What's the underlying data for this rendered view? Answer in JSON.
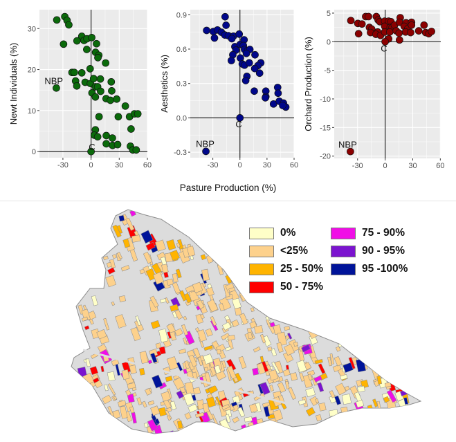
{
  "chart_data": [
    {
      "type": "scatter",
      "xlabel": "Pasture Production (%)",
      "ylabel": "Newt Individuals (%)",
      "xlim": [
        -55,
        60
      ],
      "ylim": [
        -1.5,
        34.6
      ],
      "xticks": [
        -30,
        0,
        30,
        60
      ],
      "yticks": [
        0,
        10,
        20,
        30
      ],
      "ytick_labels": [
        "0",
        "10",
        "20",
        "30"
      ],
      "color": "#0b6a0b",
      "grid": true,
      "points": [
        [
          -36.5,
          32.1
        ],
        [
          -28,
          32.9
        ],
        [
          -25.6,
          32.0
        ],
        [
          -23.7,
          30.9
        ],
        [
          -29.3,
          26.2
        ],
        [
          -9.9,
          28.1
        ],
        [
          -7.5,
          27.1
        ],
        [
          -4.4,
          27.5
        ],
        [
          -15,
          27.0
        ],
        [
          0.7,
          27.8
        ],
        [
          -4.6,
          24.9
        ],
        [
          5.8,
          26.3
        ],
        [
          4.8,
          24.2
        ],
        [
          8.2,
          23.5
        ],
        [
          7.3,
          22.9
        ],
        [
          15.5,
          21.6
        ],
        [
          -1,
          20.2
        ],
        [
          -20.3,
          19.3
        ],
        [
          -17.9,
          19.3
        ],
        [
          -9.9,
          19.2
        ],
        [
          -16.5,
          17.2
        ],
        [
          -15.2,
          16.0
        ],
        [
          -6.3,
          16.9
        ],
        [
          -0.7,
          16.6
        ],
        [
          2.7,
          17.8
        ],
        [
          9.9,
          17.7
        ],
        [
          4.6,
          15.8
        ],
        [
          7.0,
          15.8
        ],
        [
          10.2,
          14.7
        ],
        [
          1,
          14.3
        ],
        [
          4.6,
          13.3
        ],
        [
          21.5,
          17.0
        ],
        [
          22,
          14.8
        ],
        [
          16,
          12.9
        ],
        [
          20.6,
          12.5
        ],
        [
          27.3,
          12.8
        ],
        [
          36.5,
          11.1
        ],
        [
          8.5,
          8.5
        ],
        [
          29,
          8.5
        ],
        [
          41,
          8.5
        ],
        [
          46.2,
          9.2
        ],
        [
          49.8,
          9.2
        ],
        [
          42.6,
          5.5
        ],
        [
          4.6,
          5.3
        ],
        [
          3.4,
          4.0
        ],
        [
          7,
          3.6
        ],
        [
          16.2,
          3.9
        ],
        [
          22.7,
          3.3
        ],
        [
          16.2,
          1.9
        ],
        [
          22.9,
          1.5
        ],
        [
          28.3,
          1.7
        ],
        [
          41.9,
          1.3
        ],
        [
          44.5,
          0.4
        ],
        [
          48.1,
          0.4
        ],
        [
          -37,
          15.5
        ],
        [
          0,
          0
        ]
      ],
      "annotations": [
        {
          "text": "NBP",
          "x": -39.7,
          "y": 17.2
        },
        {
          "text": "C",
          "x": 1,
          "y": 1.1
        }
      ]
    },
    {
      "type": "scatter",
      "xlabel": "Pasture Production (%)",
      "ylabel": "Aesthetics (%)",
      "xlim": [
        -55,
        60
      ],
      "ylim": [
        -0.348,
        0.944
      ],
      "xticks": [
        -30,
        0,
        30,
        60
      ],
      "yticks": [
        -0.3,
        0,
        0.3,
        0.6,
        0.9
      ],
      "ytick_labels": [
        "-0.3",
        "0.0",
        "0.3",
        "0.6",
        "0.9"
      ],
      "color": "#00078a",
      "grid": true,
      "points": [
        [
          -36.9,
          0.763
        ],
        [
          -29.5,
          0.753
        ],
        [
          -28.2,
          0.697
        ],
        [
          -24.9,
          0.767
        ],
        [
          -20.5,
          0.747
        ],
        [
          -16.4,
          0.882
        ],
        [
          -15.4,
          0.808
        ],
        [
          -16.7,
          0.723
        ],
        [
          -12.8,
          0.717
        ],
        [
          -7.2,
          0.713
        ],
        [
          -9,
          0.691
        ],
        [
          -0.8,
          0.731
        ],
        [
          -5.6,
          0.621
        ],
        [
          -4.4,
          0.591
        ],
        [
          -7.9,
          0.55
        ],
        [
          -9.5,
          0.5
        ],
        [
          0.3,
          0.641
        ],
        [
          4.6,
          0.681
        ],
        [
          3.8,
          0.631
        ],
        [
          5.1,
          0.597
        ],
        [
          8.5,
          0.587
        ],
        [
          11,
          0.597
        ],
        [
          7.2,
          0.562
        ],
        [
          16.7,
          0.55
        ],
        [
          0.5,
          0.522
        ],
        [
          2.6,
          0.47
        ],
        [
          5.1,
          0.46
        ],
        [
          10.3,
          0.48
        ],
        [
          23.1,
          0.48
        ],
        [
          20,
          0.456
        ],
        [
          16.4,
          0.43
        ],
        [
          21.8,
          0.39
        ],
        [
          7.7,
          0.362
        ],
        [
          6.4,
          0.325
        ],
        [
          15.9,
          0.233
        ],
        [
          28.7,
          0.233
        ],
        [
          28.7,
          0.185
        ],
        [
          28.2,
          0.175
        ],
        [
          41.8,
          0.265
        ],
        [
          42.3,
          0.215
        ],
        [
          37.2,
          0.121
        ],
        [
          43.6,
          0.145
        ],
        [
          48.2,
          0.129
        ],
        [
          50.8,
          0.094
        ],
        [
          47.4,
          0.108
        ],
        [
          -37.7,
          -0.293
        ],
        [
          0,
          0
        ]
      ],
      "annotations": [
        {
          "text": "NBP",
          "x": -38.5,
          "y": -0.227
        },
        {
          "text": "C",
          "x": -1.3,
          "y": -0.056
        }
      ]
    },
    {
      "type": "scatter",
      "xlabel": "Pasture Production (%)",
      "ylabel": "Orchard Production (%)",
      "xlim": [
        -55.4,
        60.5
      ],
      "ylim": [
        -20.4,
        5.6
      ],
      "xticks": [
        -30,
        0,
        30,
        60
      ],
      "yticks": [
        -20,
        -15,
        -10,
        -5,
        0,
        5
      ],
      "ytick_labels": [
        "-20",
        "-15",
        "-10",
        "-5",
        "0",
        "5"
      ],
      "color": "#8b0000",
      "grid": true,
      "points": [
        [
          -37.3,
          3.7
        ],
        [
          -29.7,
          3.2
        ],
        [
          -25.2,
          3.1
        ],
        [
          -28.9,
          1.4
        ],
        [
          -21.2,
          4.4
        ],
        [
          -18.1,
          4.4
        ],
        [
          -17.1,
          2.5
        ],
        [
          -14.6,
          2.2
        ],
        [
          -15.9,
          1.6
        ],
        [
          -9.6,
          4.4
        ],
        [
          -7.6,
          3.8
        ],
        [
          -5.8,
          3.5
        ],
        [
          -8.1,
          1.7
        ],
        [
          -10.1,
          1.3
        ],
        [
          -5,
          1.1
        ],
        [
          -0.5,
          3.6
        ],
        [
          -0.5,
          2.7
        ],
        [
          -0.5,
          1.7
        ],
        [
          3.8,
          3.6
        ],
        [
          6.3,
          3.5
        ],
        [
          5.5,
          2.5
        ],
        [
          7.6,
          2.5
        ],
        [
          5,
          1.7
        ],
        [
          3.8,
          0.5
        ],
        [
          10.1,
          2.9
        ],
        [
          12.1,
          1.9
        ],
        [
          16.4,
          4.2
        ],
        [
          15.6,
          3.4
        ],
        [
          15.1,
          1.5
        ],
        [
          15.6,
          0.3
        ],
        [
          22.7,
          3.3
        ],
        [
          20.7,
          2.7
        ],
        [
          24.7,
          2.3
        ],
        [
          22.2,
          1.7
        ],
        [
          28.7,
          3.4
        ],
        [
          28.7,
          2.9
        ],
        [
          27.7,
          1.6
        ],
        [
          36.5,
          1.9
        ],
        [
          42.3,
          2.9
        ],
        [
          44.1,
          1.6
        ],
        [
          47.4,
          1.4
        ],
        [
          50.4,
          1.8
        ],
        [
          -37.8,
          -19.2
        ],
        [
          0,
          0
        ]
      ],
      "annotations": [
        {
          "text": "NBP",
          "x": -40.8,
          "y": -18.0
        },
        {
          "text": "C",
          "x": -1.3,
          "y": -1.2
        }
      ]
    }
  ],
  "shared_xlabel": "Pasture Production (%)",
  "map": {
    "background_color": "#dcdcdc",
    "legend": [
      {
        "label": "0%",
        "color": "#ffffc8"
      },
      {
        "label": "<25%",
        "color": "#fdd18c"
      },
      {
        "label": "25 - 50%",
        "color": "#ffb400"
      },
      {
        "label": "50 - 75%",
        "color": "#ff0000"
      },
      {
        "label": "75 - 90%",
        "color": "#f00ee6"
      },
      {
        "label": "90 - 95%",
        "color": "#7b14cf"
      },
      {
        "label": "95 -100%",
        "color": "#001499"
      }
    ]
  }
}
